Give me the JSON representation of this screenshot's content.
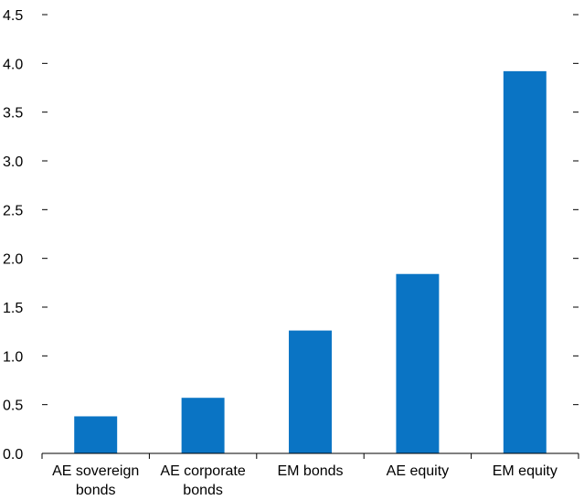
{
  "chart_data": {
    "type": "bar",
    "title": "",
    "xlabel": "",
    "ylabel": "",
    "categories": [
      [
        "AE sovereign",
        "bonds"
      ],
      [
        "AE corporate",
        "bonds"
      ],
      [
        "EM bonds"
      ],
      [
        "AE equity"
      ],
      [
        "EM equity"
      ]
    ],
    "values": [
      0.38,
      0.57,
      1.26,
      1.84,
      3.92
    ],
    "ylim": [
      0,
      4.5
    ],
    "yticks": [
      0.0,
      0.5,
      1.0,
      1.5,
      2.0,
      2.5,
      3.0,
      3.5,
      4.0,
      4.5
    ],
    "ytick_labels": [
      "0.0",
      "0.5",
      "1.0",
      "1.5",
      "2.0",
      "2.5",
      "3.0",
      "3.5",
      "4.0",
      "4.5"
    ],
    "right_axis_ticks": true,
    "grid": false,
    "legend": "none",
    "bar_color": "#0a74c4"
  }
}
